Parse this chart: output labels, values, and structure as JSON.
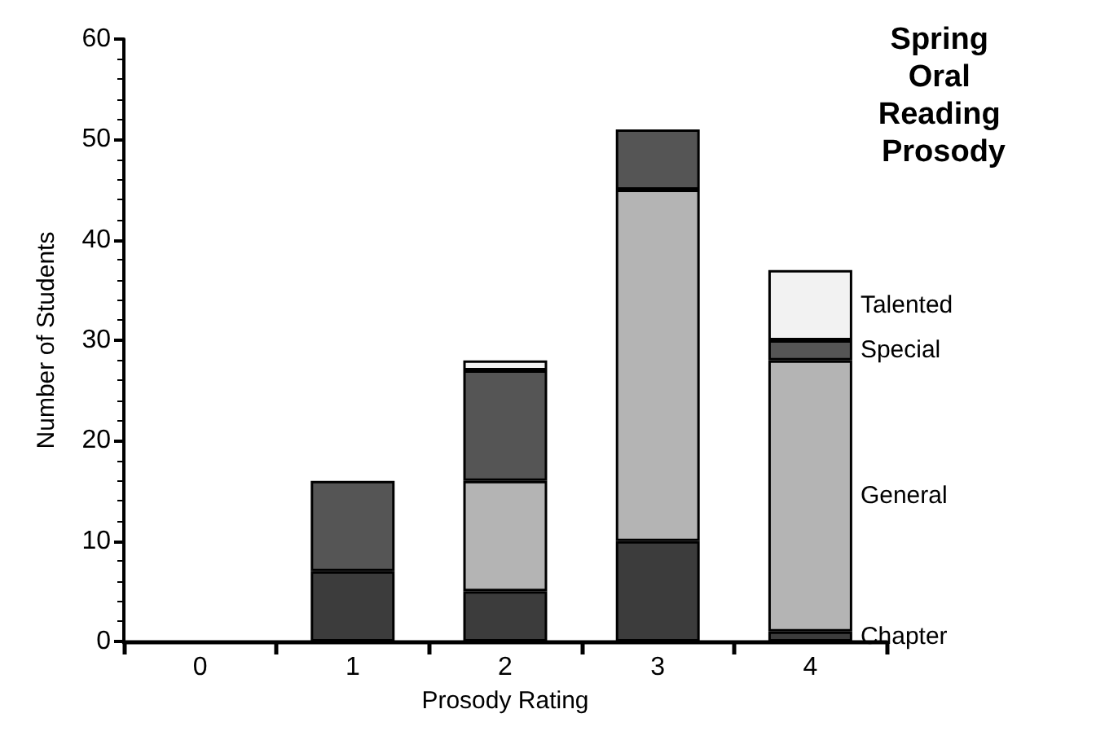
{
  "chart_data": {
    "type": "bar",
    "title": "Spring Oral Reading Prosody",
    "xlabel": "Prosody Rating",
    "ylabel": "Number of Students",
    "categories": [
      "0",
      "1",
      "2",
      "3",
      "4"
    ],
    "stacked": true,
    "series": [
      {
        "name": "Chapter",
        "color": "#3c3c3c",
        "values": [
          0,
          7,
          5,
          10,
          1
        ]
      },
      {
        "name": "General",
        "color": "#b4b4b4",
        "values": [
          0,
          0,
          11,
          35,
          27
        ]
      },
      {
        "name": "Special",
        "color": "#555555",
        "values": [
          0,
          9,
          11,
          6,
          2
        ]
      },
      {
        "name": "Talented",
        "color": "#f2f2f2",
        "values": [
          0,
          0,
          1,
          0,
          7
        ]
      }
    ],
    "ylim": [
      0,
      60
    ],
    "yticks": [
      0,
      10,
      20,
      30,
      40,
      50,
      60
    ],
    "grid": false
  }
}
